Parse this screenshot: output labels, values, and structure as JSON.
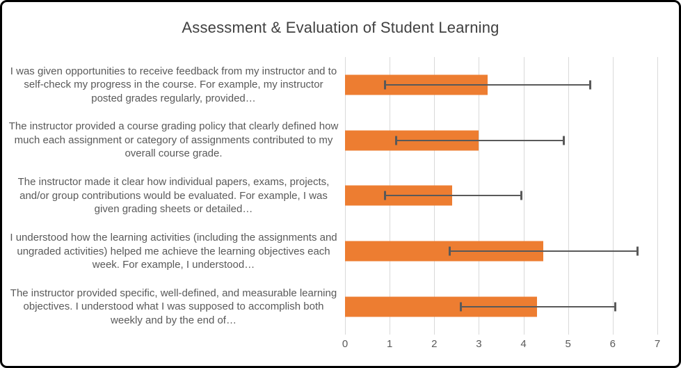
{
  "chart_data": {
    "type": "bar",
    "orientation": "horizontal",
    "title": "Assessment & Evaluation of Student Learning",
    "categories": [
      "I was given opportunities to receive feedback from my instructor and to self-check my progress in the course. For example, my instructor posted grades regularly, provided…",
      "The instructor provided a course grading policy that clearly defined how much each assignment or category of assignments contributed to my overall course grade.",
      "The instructor made it clear how individual papers, exams, projects, and/or group contributions would be evaluated. For example, I was given grading sheets or detailed…",
      "I understood how the learning activities (including the assignments and ungraded activities) helped me achieve the learning objectives each week. For example, I understood…",
      "The instructor provided specific, well-defined, and measurable learning objectives. I understood what I was supposed to accomplish both weekly and by the end of…"
    ],
    "values": [
      3.2,
      3.0,
      2.4,
      4.45,
      4.3
    ],
    "error_low": [
      0.9,
      1.15,
      0.9,
      2.35,
      2.6
    ],
    "error_high": [
      5.5,
      4.9,
      3.95,
      6.55,
      6.05
    ],
    "xlabel": "",
    "ylabel": "",
    "xlim": [
      0,
      7
    ],
    "x_ticks": [
      "0",
      "1",
      "2",
      "3",
      "4",
      "5",
      "6",
      "7"
    ],
    "grid": true,
    "legend": false,
    "bar_color": "#ED7D31",
    "error_bar_color": "#595959",
    "gridline_color": "#D9D9D9",
    "axis_text_color": "#595959",
    "title_color": "#404040"
  }
}
